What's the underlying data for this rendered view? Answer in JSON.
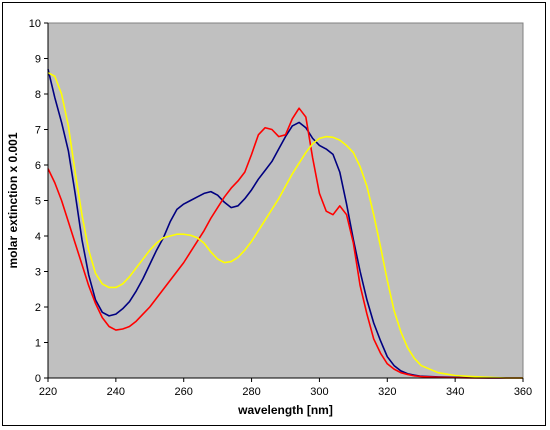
{
  "chart_data": {
    "type": "line",
    "title": "",
    "xlabel": "wavelength [nm]",
    "ylabel": "molar extinction x 0.001",
    "xlim": [
      220,
      360
    ],
    "ylim": [
      0,
      10
    ],
    "xticks": [
      220,
      240,
      260,
      280,
      300,
      320,
      340,
      360
    ],
    "yticks": [
      0,
      1,
      2,
      3,
      4,
      5,
      6,
      7,
      8,
      9,
      10
    ],
    "grid": false,
    "plot_background": "#c0c0c0",
    "series": [
      {
        "color": "#000080",
        "x": [
          220,
          222,
          224,
          226,
          228,
          230,
          232,
          234,
          236,
          238,
          240,
          242,
          244,
          246,
          248,
          250,
          252,
          254,
          256,
          258,
          260,
          262,
          264,
          266,
          268,
          270,
          272,
          274,
          276,
          278,
          280,
          282,
          284,
          286,
          288,
          290,
          292,
          294,
          296,
          298,
          300,
          302,
          304,
          306,
          308,
          310,
          312,
          314,
          316,
          318,
          320,
          322,
          324,
          326,
          328,
          330,
          335,
          340,
          345,
          350,
          355,
          360
        ],
        "y": [
          8.7,
          7.9,
          7.2,
          6.4,
          5.2,
          3.9,
          2.9,
          2.2,
          1.85,
          1.75,
          1.8,
          1.95,
          2.15,
          2.45,
          2.8,
          3.2,
          3.6,
          3.95,
          4.4,
          4.75,
          4.9,
          5.0,
          5.1,
          5.2,
          5.25,
          5.15,
          4.95,
          4.8,
          4.85,
          5.05,
          5.3,
          5.6,
          5.85,
          6.1,
          6.45,
          6.8,
          7.1,
          7.2,
          7.05,
          6.75,
          6.55,
          6.45,
          6.3,
          5.8,
          4.9,
          3.9,
          3.0,
          2.2,
          1.55,
          1.05,
          0.6,
          0.35,
          0.2,
          0.12,
          0.08,
          0.05,
          0.03,
          0.02,
          0.01,
          0.0,
          0.0,
          0.0
        ]
      },
      {
        "color": "#ff0000",
        "x": [
          220,
          222,
          224,
          226,
          228,
          230,
          232,
          234,
          236,
          238,
          240,
          242,
          244,
          246,
          248,
          250,
          252,
          254,
          256,
          258,
          260,
          262,
          264,
          266,
          268,
          270,
          272,
          274,
          276,
          278,
          280,
          282,
          284,
          286,
          288,
          290,
          292,
          294,
          296,
          298,
          300,
          302,
          304,
          306,
          308,
          310,
          312,
          314,
          316,
          318,
          320,
          322,
          324,
          326,
          328,
          330,
          335,
          340,
          345,
          350,
          355,
          360
        ],
        "y": [
          5.9,
          5.5,
          5.0,
          4.4,
          3.8,
          3.2,
          2.6,
          2.1,
          1.7,
          1.45,
          1.35,
          1.38,
          1.45,
          1.6,
          1.8,
          2.0,
          2.25,
          2.5,
          2.75,
          3.0,
          3.25,
          3.55,
          3.85,
          4.15,
          4.5,
          4.8,
          5.1,
          5.35,
          5.55,
          5.8,
          6.3,
          6.85,
          7.05,
          7.0,
          6.8,
          6.85,
          7.3,
          7.6,
          7.35,
          6.2,
          5.2,
          4.7,
          4.6,
          4.85,
          4.6,
          3.8,
          2.6,
          1.8,
          1.1,
          0.7,
          0.4,
          0.25,
          0.15,
          0.1,
          0.06,
          0.04,
          0.02,
          0.01,
          0.0,
          0.0,
          0.0,
          0.0
        ]
      },
      {
        "color": "#ffff00",
        "x": [
          220,
          222,
          224,
          226,
          228,
          230,
          232,
          234,
          236,
          238,
          240,
          242,
          244,
          246,
          248,
          250,
          252,
          254,
          256,
          258,
          260,
          262,
          264,
          266,
          268,
          270,
          272,
          274,
          276,
          278,
          280,
          282,
          284,
          286,
          288,
          290,
          292,
          294,
          296,
          298,
          300,
          302,
          304,
          306,
          308,
          310,
          312,
          314,
          316,
          318,
          320,
          322,
          324,
          326,
          328,
          330,
          335,
          340,
          345,
          350,
          355,
          360
        ],
        "y": [
          8.6,
          8.5,
          8.0,
          7.1,
          5.8,
          4.6,
          3.6,
          2.95,
          2.65,
          2.55,
          2.55,
          2.65,
          2.85,
          3.1,
          3.35,
          3.6,
          3.8,
          3.95,
          4.0,
          4.05,
          4.05,
          4.02,
          3.95,
          3.8,
          3.55,
          3.35,
          3.25,
          3.28,
          3.4,
          3.6,
          3.85,
          4.15,
          4.45,
          4.75,
          5.05,
          5.4,
          5.75,
          6.05,
          6.35,
          6.6,
          6.75,
          6.8,
          6.78,
          6.7,
          6.55,
          6.35,
          5.95,
          5.4,
          4.6,
          3.7,
          2.75,
          1.9,
          1.3,
          0.85,
          0.55,
          0.35,
          0.15,
          0.07,
          0.04,
          0.02,
          0.0,
          0.0
        ]
      }
    ]
  }
}
